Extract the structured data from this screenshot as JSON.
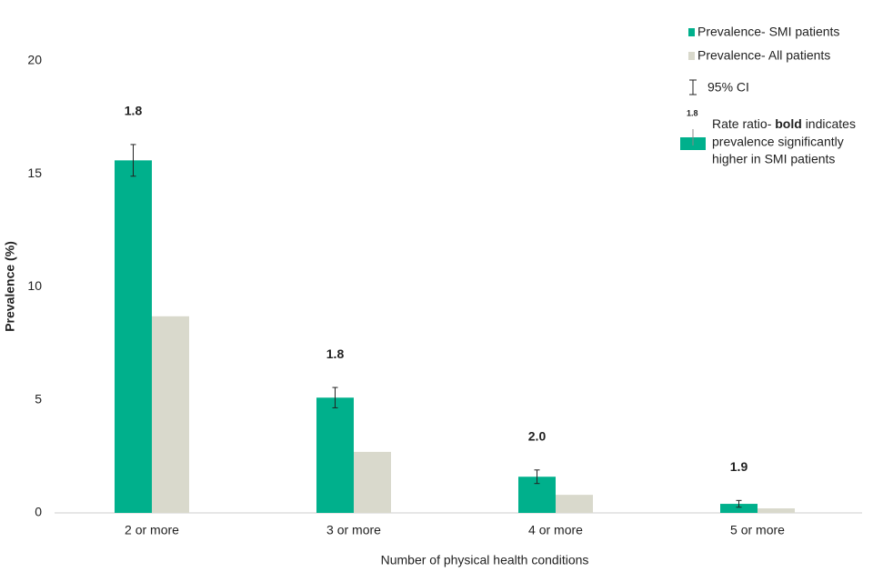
{
  "chart_data": {
    "type": "bar",
    "x_label": "Number of physical health conditions",
    "y_label": "Prevalence (%)",
    "categories": [
      "2 or more",
      "3 or more",
      "4 or more",
      "5 or more"
    ],
    "series": [
      {
        "name": "Prevalence- SMI patients",
        "color": "#00b08c",
        "values": [
          15.6,
          5.1,
          1.6,
          0.4
        ],
        "errors": [
          0.7,
          0.45,
          0.3,
          0.15
        ]
      },
      {
        "name": "Prevalence- All patients",
        "color": "#d9d9cc",
        "values": [
          8.7,
          2.7,
          0.8,
          0.2
        ]
      }
    ],
    "ratio_labels": [
      "1.8",
      "1.8",
      "2.0",
      "1.9"
    ],
    "ci_label": "95% CI",
    "ratio_note": {
      "sample": "1.8",
      "before": "Rate ratio-",
      "bold": "bold",
      "after": "indicates",
      "lines": [
        "prevalence significantly",
        "higher in SMI patients"
      ]
    },
    "ylim": [
      0,
      20
    ],
    "yticks": [
      0,
      5,
      10,
      15,
      20
    ],
    "grid": false
  }
}
